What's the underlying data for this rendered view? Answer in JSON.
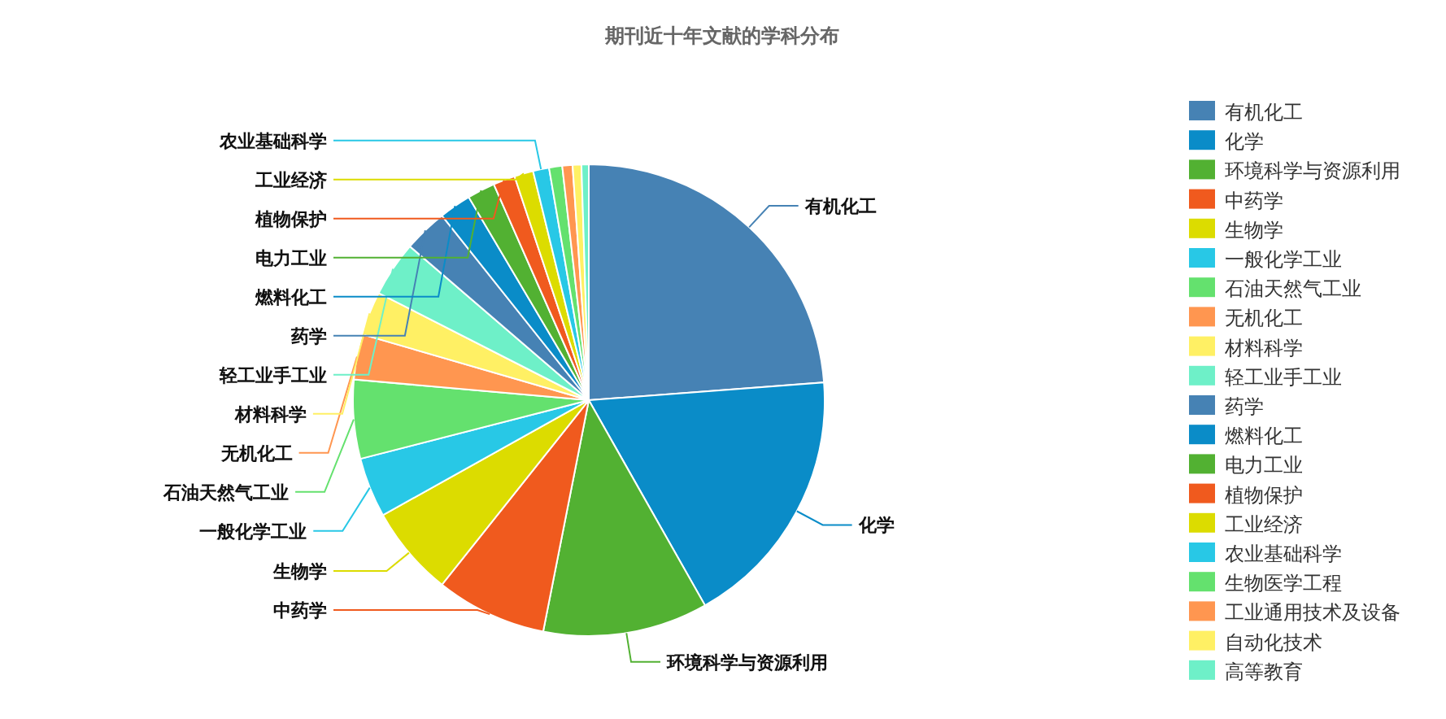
{
  "chart_data": {
    "type": "pie",
    "title": "期刊近十年文献的学科分布",
    "categories": [
      "有机化工",
      "化学",
      "环境科学与资源利用",
      "中药学",
      "生物学",
      "一般化学工业",
      "石油天然气工业",
      "无机化工",
      "材料科学",
      "轻工业手工业",
      "药学",
      "燃料化工",
      "电力工业",
      "植物保护",
      "工业经济",
      "农业基础科学",
      "生物医学工程",
      "工业通用技术及设备",
      "自动化技术",
      "高等教育"
    ],
    "values": [
      23.8,
      18,
      11.3,
      7.6,
      6.2,
      4.1,
      5.4,
      3.1,
      3,
      3.8,
      3,
      2.2,
      1.9,
      1.5,
      1.3,
      1.1,
      0.9,
      0.7,
      0.6,
      0.5
    ],
    "colors": [
      "#4682b4",
      "#0a8cc8",
      "#52b132",
      "#f05a1e",
      "#dcdc00",
      "#28c8e6",
      "#64e16e",
      "#ff9650",
      "#fff064",
      "#6ef0c8",
      "#4682b4",
      "#0a8cc8",
      "#52b132",
      "#f05a1e",
      "#dcdc00",
      "#28c8e6",
      "#64e16e",
      "#ff9650",
      "#fff064",
      "#6ef0c8"
    ],
    "legend": "right"
  }
}
